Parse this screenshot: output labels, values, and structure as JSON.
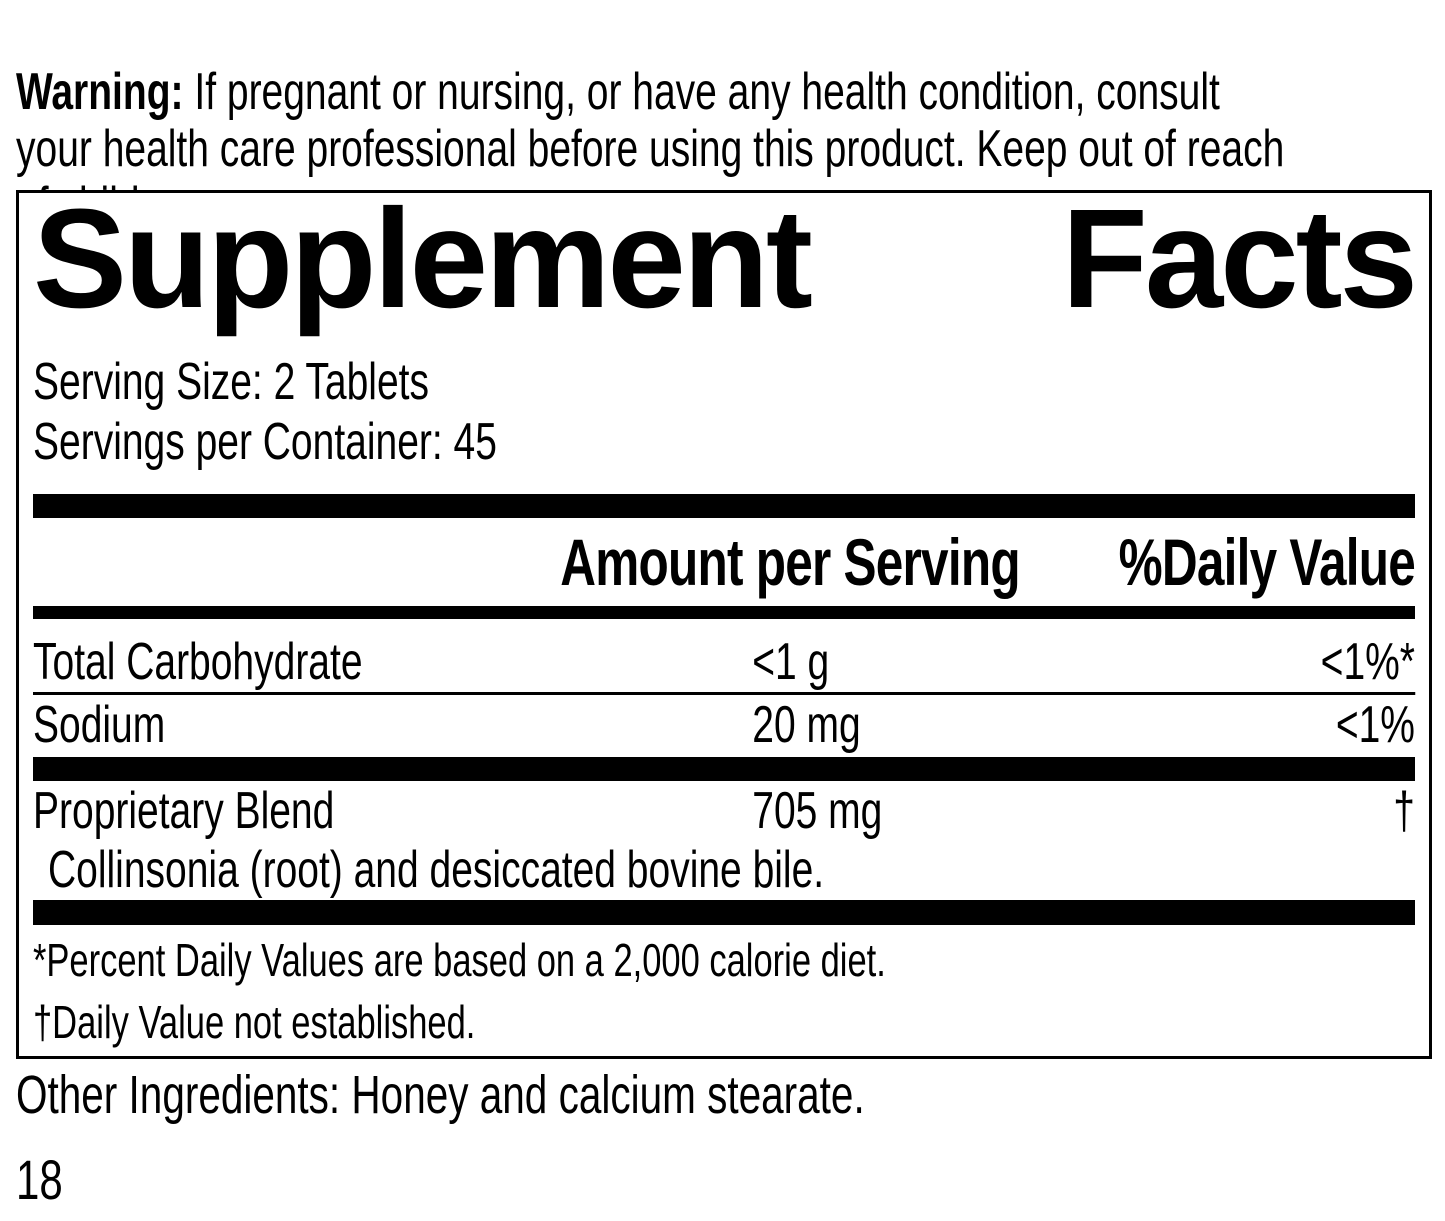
{
  "colors": {
    "ink": "#000000",
    "paper": "#ffffff"
  },
  "warning": {
    "label": "Warning:",
    "text": " If pregnant or nursing, or have any health condition, consult\nyour health care professional before using this product. Keep out of reach\nof children."
  },
  "panel": {
    "title": {
      "word1": "Supplement",
      "word2": "Facts"
    },
    "serving_size": "Serving Size: 2 Tablets",
    "servings_per_container": "Servings per Container: 45",
    "header": {
      "amount": "Amount per Serving",
      "daily_value": "%Daily Value"
    },
    "rows": [
      {
        "label": "Total Carbohydrate",
        "amount": "<1 g",
        "daily_value": "<1%*"
      },
      {
        "label": "Sodium",
        "amount": "20 mg",
        "daily_value": "<1%"
      },
      {
        "label": "Proprietary Blend",
        "amount": "705 mg",
        "daily_value": "†"
      }
    ],
    "blend_ingredients": "Collinsonia (root) and desiccated bovine bile.",
    "footnotes": [
      "*Percent Daily Values are based on a 2,000 calorie diet.",
      "†Daily Value not established."
    ]
  },
  "other_ingredients": "Other Ingredients: Honey and calcium stearate.",
  "page_number": "18"
}
